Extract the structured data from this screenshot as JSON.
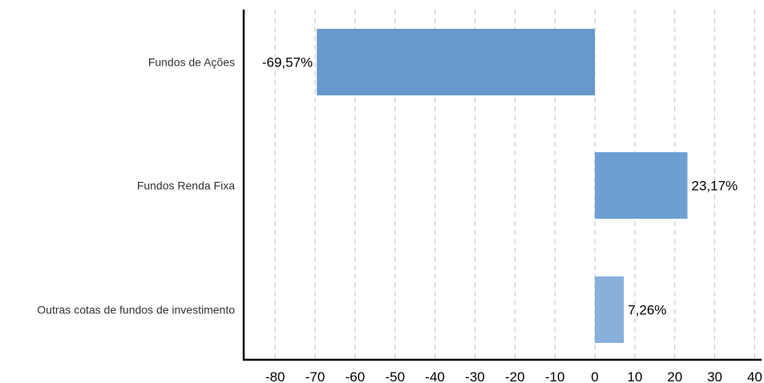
{
  "chart_data": {
    "type": "bar",
    "orientation": "horizontal",
    "title": "",
    "xlabel": "",
    "ylabel": "",
    "categories": [
      "Fundos de Ações",
      "Fundos Renda Fixa",
      "Outras cotas de fundos de investimento"
    ],
    "values": [
      -69.57,
      23.17,
      7.26
    ],
    "data_labels": [
      "-69,57%",
      "23,17%",
      "7,26%"
    ],
    "bar_colors": [
      "#6699cc",
      "#6e9fd3",
      "#88b0da"
    ],
    "xlim": [
      -88,
      41
    ],
    "xticks": [
      -80,
      -70,
      -60,
      -50,
      -40,
      -30,
      -20,
      -10,
      0,
      10,
      20,
      30,
      40
    ],
    "xtick_labels": [
      "-80",
      "-70",
      "-60",
      "-50",
      "-40",
      "-30",
      "-20",
      "-10",
      "0",
      "10",
      "20",
      "30",
      "40"
    ],
    "grid": "vertical-dashed",
    "legend": "none"
  }
}
